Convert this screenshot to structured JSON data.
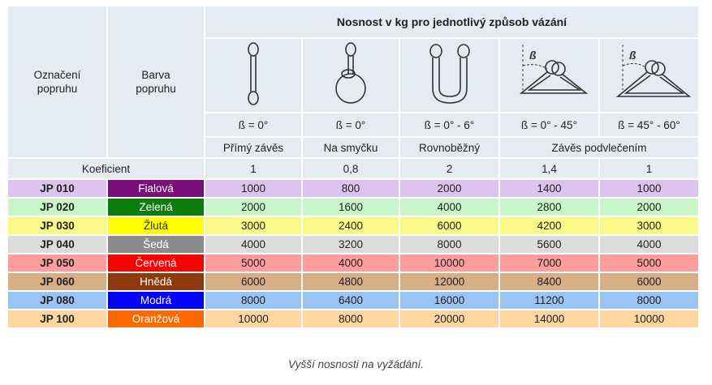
{
  "table": {
    "col_code_header": "Označení\npopruhu",
    "col_color_header": "Barva\npopruhu",
    "title": "Nosnost v kg pro jednotlivý způsob vázání",
    "methods": [
      {
        "beta": "ß = 0°",
        "name": "Přímý závěs",
        "icon": "straight-sling-icon"
      },
      {
        "beta": "ß = 0°",
        "name": "Na smyčku",
        "icon": "choke-sling-icon"
      },
      {
        "beta": "ß = 0° - 6°",
        "name": "Rovnoběžný",
        "icon": "basket-sling-icon"
      },
      {
        "beta": "ß = 0° - 45°",
        "name": "Závěs podvlečením",
        "icon": "angled-basket-45-icon"
      },
      {
        "beta": "ß = 45° - 60°",
        "name": "",
        "icon": "angled-basket-60-icon"
      }
    ],
    "koef_label": "Koeficient",
    "koef_values": [
      "1",
      "0,8",
      "2",
      "1,4",
      "1"
    ],
    "beta_symbol": "ß",
    "rows": [
      {
        "code": "JP 010",
        "color": "Fialová",
        "swatch": "#7a0e7a",
        "bg": "#dcc3f0",
        "values": [
          "1000",
          "800",
          "2000",
          "1400",
          "1000"
        ]
      },
      {
        "code": "JP 020",
        "color": "Zelená",
        "swatch": "#0a7d0a",
        "bg": "#c9f5c9",
        "values": [
          "2000",
          "1600",
          "4000",
          "2800",
          "2000"
        ]
      },
      {
        "code": "JP 030",
        "color": "Žlutá",
        "swatch": "#ffff00",
        "bg": "#f9f98a",
        "values": [
          "3000",
          "2400",
          "6000",
          "4200",
          "3000"
        ]
      },
      {
        "code": "JP 040",
        "color": "Šedá",
        "swatch": "#8c8c8c",
        "bg": "#dcdcdc",
        "values": [
          "4000",
          "3200",
          "8000",
          "5600",
          "4000"
        ]
      },
      {
        "code": "JP 050",
        "color": "Červená",
        "swatch": "#ff0000",
        "bg": "#ff9c9c",
        "values": [
          "5000",
          "4000",
          "10000",
          "7000",
          "5000"
        ]
      },
      {
        "code": "JP 060",
        "color": "Hnědá",
        "swatch": "#8f3a0c",
        "bg": "#d7ae86",
        "values": [
          "6000",
          "4800",
          "12000",
          "8400",
          "6000"
        ]
      },
      {
        "code": "JP 080",
        "color": "Modrá",
        "swatch": "#0000ff",
        "bg": "#99c4f3",
        "values": [
          "8000",
          "6400",
          "16000",
          "11200",
          "8000"
        ]
      },
      {
        "code": "JP 100",
        "color": "Oranžová",
        "swatch": "#ff6a00",
        "bg": "#fdd6a0",
        "values": [
          "10000",
          "8000",
          "20000",
          "14000",
          "10000"
        ]
      }
    ]
  },
  "caption": "Vyšší nosnosti na vyžádání."
}
